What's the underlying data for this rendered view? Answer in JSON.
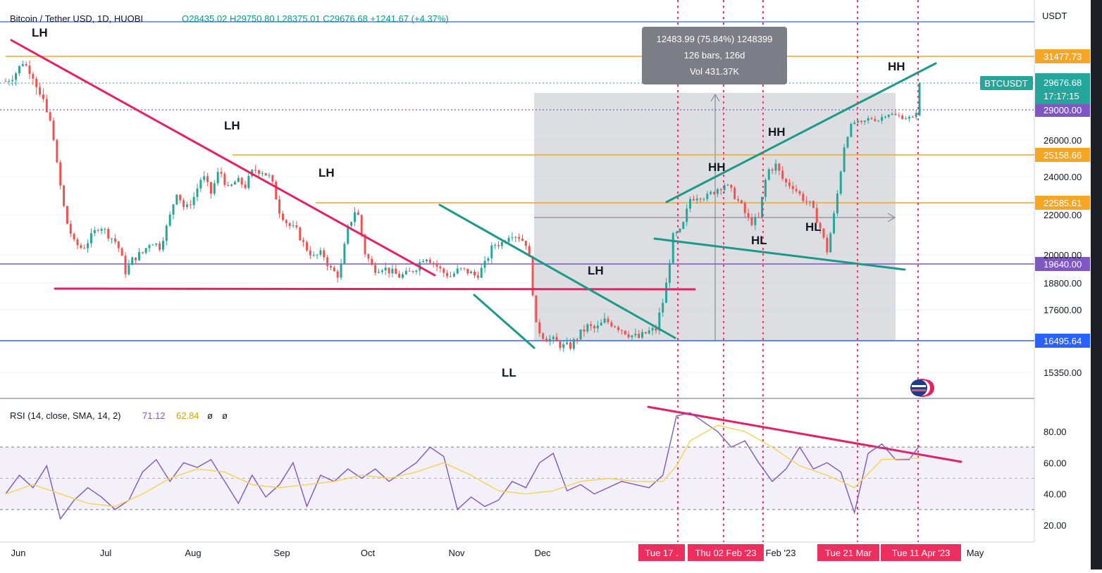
{
  "header": {
    "symbol": "Bitcoin / Tether USD, 1D, HUOBI",
    "ohlc": "O28435.02  H29750.80  L28375.01  C29676.68  +1241.67 (+4.37%)"
  },
  "colors": {
    "up": "#26a69a",
    "down": "#ef5350",
    "trend_pink": "#e91e63",
    "trend_teal": "#1b9a87",
    "orange": "#f5a623",
    "purple": "#7e57c2",
    "blue": "#2962ff",
    "rsi_line": "#7e57c2",
    "rsi_sma": "#f5d34e"
  },
  "chart_data": [
    {
      "type": "candlestick",
      "title": "Bitcoin / Tether USD, 1D, HUOBI",
      "currency_label": "USDT",
      "last_price": {
        "symbol": "BTCUSDT",
        "value": "29676.68",
        "countdown": "17:17:15"
      },
      "ylim": [
        14500,
        33500
      ],
      "y_ticks": [
        "15350.00",
        "17600.00",
        "18800.00",
        "20000.00",
        "22000.00",
        "24000.00",
        "26000.00"
      ],
      "price_levels": [
        {
          "value": 31477.73,
          "label": "31477.73",
          "color": "orange"
        },
        {
          "value": 29000.0,
          "label": "29000.00",
          "color": "purple"
        },
        {
          "value": 25158.66,
          "label": "25158.66",
          "color": "orange"
        },
        {
          "value": 22585.61,
          "label": "22585.61",
          "color": "orange"
        },
        {
          "value": 19640.0,
          "label": "19640.00",
          "color": "purple"
        },
        {
          "value": 16495.64,
          "label": "16495.64",
          "color": "blue"
        }
      ],
      "x_labels": [
        "Jun",
        "Jul",
        "Aug",
        "Sep",
        "Oct",
        "Nov",
        "Dec",
        "Feb '23",
        "Mar",
        "May"
      ],
      "date_tags": [
        "Tue 17 .",
        "Thu 02 Feb '23",
        "Tue 21 Mar",
        "Tue 11 Apr '23"
      ],
      "measure": {
        "line1": "12483.99 (75.84%) 1248399",
        "line2": "126 bars, 126d",
        "line3": "Vol 431.37K"
      },
      "annotations": [
        "LH",
        "LH",
        "LH",
        "LH",
        "LL",
        "HH",
        "HH",
        "HH",
        "HL",
        "HL"
      ],
      "close_path": [
        [
          0,
          29800
        ],
        [
          5,
          30200
        ],
        [
          10,
          31100
        ],
        [
          15,
          30400
        ],
        [
          20,
          29300
        ],
        [
          25,
          28600
        ],
        [
          30,
          24600
        ],
        [
          35,
          21800
        ],
        [
          40,
          20600
        ],
        [
          45,
          20300
        ],
        [
          50,
          20900
        ],
        [
          55,
          21500
        ],
        [
          60,
          21000
        ],
        [
          65,
          20600
        ],
        [
          70,
          19300
        ],
        [
          75,
          19900
        ],
        [
          80,
          20100
        ],
        [
          85,
          20700
        ],
        [
          90,
          20400
        ],
        [
          95,
          21600
        ],
        [
          100,
          23200
        ],
        [
          105,
          22200
        ],
        [
          110,
          22900
        ],
        [
          115,
          24100
        ],
        [
          120,
          23100
        ],
        [
          125,
          24400
        ],
        [
          130,
          23300
        ],
        [
          135,
          23800
        ],
        [
          140,
          23500
        ],
        [
          145,
          24400
        ],
        [
          150,
          24300
        ],
        [
          155,
          23900
        ],
        [
          160,
          22200
        ],
        [
          165,
          21500
        ],
        [
          170,
          21200
        ],
        [
          175,
          20400
        ],
        [
          180,
          19900
        ],
        [
          185,
          20100
        ],
        [
          190,
          19400
        ],
        [
          195,
          19100
        ],
        [
          200,
          21300
        ],
        [
          205,
          22400
        ],
        [
          210,
          20100
        ],
        [
          215,
          19400
        ],
        [
          220,
          19500
        ],
        [
          225,
          19300
        ],
        [
          230,
          19100
        ],
        [
          235,
          19200
        ],
        [
          240,
          19500
        ],
        [
          245,
          20000
        ],
        [
          250,
          19700
        ],
        [
          255,
          19300
        ],
        [
          260,
          19100
        ],
        [
          265,
          19400
        ],
        [
          270,
          19300
        ],
        [
          275,
          19100
        ],
        [
          280,
          19600
        ],
        [
          285,
          20500
        ],
        [
          290,
          20600
        ],
        [
          295,
          21100
        ],
        [
          300,
          20900
        ],
        [
          305,
          20500
        ],
        [
          310,
          17000
        ],
        [
          315,
          16600
        ],
        [
          320,
          16500
        ],
        [
          325,
          16300
        ],
        [
          330,
          16300
        ],
        [
          335,
          16700
        ],
        [
          340,
          17000
        ],
        [
          345,
          16900
        ],
        [
          350,
          17200
        ],
        [
          355,
          17100
        ],
        [
          360,
          16900
        ],
        [
          365,
          16700
        ],
        [
          370,
          16600
        ],
        [
          375,
          16800
        ],
        [
          380,
          16900
        ],
        [
          385,
          18200
        ],
        [
          390,
          20900
        ],
        [
          395,
          21200
        ],
        [
          400,
          22800
        ],
        [
          405,
          23000
        ],
        [
          410,
          22900
        ],
        [
          415,
          23300
        ],
        [
          420,
          23600
        ],
        [
          425,
          23100
        ],
        [
          430,
          22400
        ],
        [
          435,
          21600
        ],
        [
          440,
          21800
        ],
        [
          445,
          24300
        ],
        [
          450,
          24600
        ],
        [
          455,
          23700
        ],
        [
          460,
          23500
        ],
        [
          465,
          22900
        ],
        [
          470,
          22500
        ],
        [
          475,
          21600
        ],
        [
          480,
          20200
        ],
        [
          485,
          22400
        ],
        [
          490,
          25700
        ],
        [
          495,
          27800
        ],
        [
          500,
          27600
        ],
        [
          505,
          28200
        ],
        [
          510,
          28000
        ],
        [
          515,
          28700
        ],
        [
          520,
          28400
        ],
        [
          525,
          28300
        ],
        [
          530,
          28100
        ],
        [
          534,
          29677
        ]
      ]
    },
    {
      "type": "line",
      "title": "RSI (14, close, SMA, 14, 2)",
      "values_text": [
        "71.12",
        "62.84",
        "ø",
        "ø"
      ],
      "ylim": [
        15,
        95
      ],
      "y_ticks": [
        "20.00",
        "40.00",
        "60.00",
        "80.00"
      ],
      "bands": [
        30,
        70
      ],
      "series": [
        {
          "name": "RSI",
          "x": [
            0,
            8,
            16,
            24,
            32,
            40,
            48,
            56,
            64,
            72,
            80,
            88,
            96,
            104,
            112,
            120,
            128,
            136,
            144,
            152,
            160,
            168,
            176,
            184,
            192,
            200,
            208,
            216,
            224,
            232,
            240,
            248,
            256,
            264,
            272,
            280,
            288,
            296,
            304,
            312,
            320,
            328,
            336,
            344,
            352,
            360,
            368,
            376,
            384,
            392,
            400,
            408,
            416,
            424,
            432,
            440,
            448,
            456,
            464,
            472,
            480,
            488,
            496,
            504,
            512,
            520,
            528,
            534
          ],
          "y": [
            40,
            52,
            44,
            58,
            24,
            36,
            44,
            38,
            30,
            36,
            54,
            62,
            48,
            60,
            57,
            62,
            48,
            34,
            52,
            38,
            46,
            60,
            32,
            52,
            48,
            56,
            50,
            56,
            48,
            54,
            60,
            70,
            64,
            30,
            38,
            32,
            36,
            48,
            44,
            60,
            66,
            42,
            46,
            40,
            44,
            48,
            46,
            44,
            52,
            90,
            92,
            86,
            80,
            70,
            74,
            60,
            48,
            56,
            70,
            56,
            60,
            54,
            28,
            66,
            72,
            62,
            62,
            71
          ]
        },
        {
          "name": "RSI-based MA",
          "x": [
            0,
            16,
            32,
            48,
            64,
            80,
            96,
            112,
            128,
            144,
            160,
            176,
            192,
            208,
            224,
            240,
            256,
            272,
            288,
            304,
            320,
            336,
            352,
            368,
            384,
            392,
            400,
            416,
            432,
            448,
            464,
            480,
            496,
            512,
            534
          ],
          "y": [
            40,
            46,
            40,
            34,
            32,
            40,
            50,
            56,
            54,
            46,
            44,
            46,
            48,
            52,
            50,
            54,
            60,
            52,
            42,
            40,
            42,
            48,
            50,
            48,
            48,
            58,
            74,
            84,
            80,
            70,
            58,
            52,
            44,
            62,
            63
          ]
        }
      ]
    }
  ]
}
